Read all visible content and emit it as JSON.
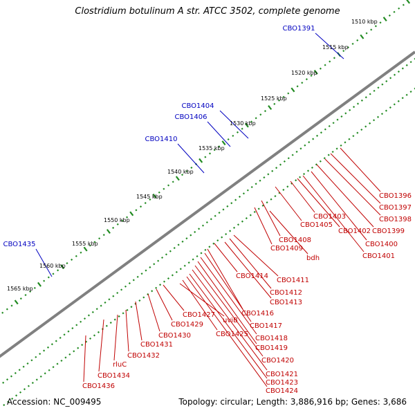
{
  "title": "Clostridium botulinum A str. ATCC 3502, complete genome",
  "footer": {
    "accession_text": "Accession: NC_009495",
    "stats_text": "Topology: circular; Length: 3,886,916 bp; Genes: 3,686"
  },
  "colors": {
    "backbone": "#808080",
    "tick": "#228B22",
    "blue_label": "#0000c0",
    "red_label": "#c00000",
    "forward_feature": "#0000ff",
    "reverse_feature": "#ff0000"
  },
  "scale_labels": [
    "1510 kbp",
    "1515 kbp",
    "1520 kbp",
    "1525 kbp",
    "1530 kbp",
    "1535 kbp",
    "1540 kbp",
    "1545 kbp",
    "1550 kbp",
    "1555 kbp",
    "1560 kbp",
    "1565 kbp"
  ],
  "forward_labels": [
    "CBO1391",
    "CBO1404",
    "CBO1406",
    "CBO1410",
    "CBO1435"
  ],
  "reverse_labels": [
    "CBO1396",
    "CBO1397",
    "CBO1398",
    "CBO1399",
    "CBO1400",
    "CBO1401",
    "CBO1402",
    "CBO1403",
    "CBO1405",
    "CBO1408",
    "CBO1409",
    "bdh",
    "CBO1411",
    "CBO1412",
    "CBO1413",
    "CBO1414",
    "CBO1416",
    "CBO1417",
    "CBO1418",
    "CBO1419",
    "CBO1420",
    "CBO1421",
    "CBO1423",
    "CBO1424",
    "CBO1425",
    "uviB",
    "CBO1427",
    "CBO1429",
    "CBO1430",
    "CBO1431",
    "CBO1432",
    "rluC",
    "CBO1434",
    "CBO1436"
  ]
}
